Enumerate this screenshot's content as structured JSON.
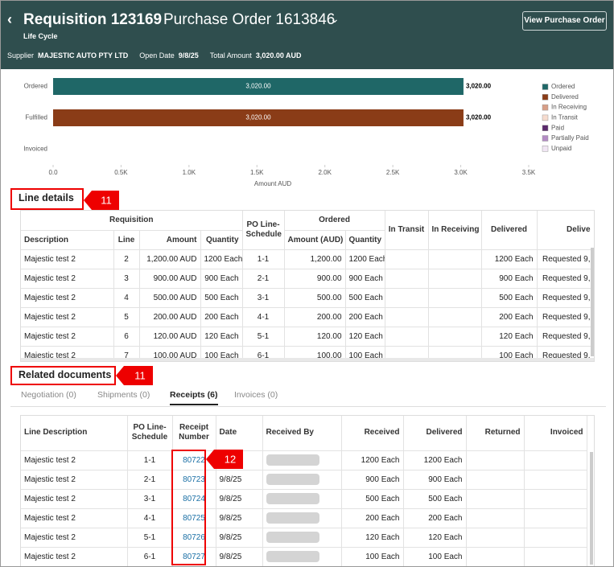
{
  "header": {
    "title": "Requisition 123169",
    "subtitle": "Purchase Order 1613846",
    "section": "Life Cycle",
    "button": "View Purchase Order",
    "fields": [
      {
        "label": "Supplier",
        "value": "MAJESTIC AUTO PTY LTD"
      },
      {
        "label": "Open Date",
        "value": "9/8/25"
      },
      {
        "label": "Total Amount",
        "value": "3,020.00 AUD"
      }
    ]
  },
  "chart_data": {
    "type": "bar",
    "orientation": "horizontal",
    "xlabel": "Amount AUD",
    "categories": [
      "Ordered",
      "Fulfilled",
      "Invoiced"
    ],
    "series": [
      {
        "name": "Ordered",
        "color": "#1f6767",
        "values": [
          3020,
          null,
          null
        ],
        "value_labels": [
          "3,020.00",
          null,
          null
        ]
      },
      {
        "name": "Delivered",
        "color": "#8a3c17",
        "values": [
          null,
          3020,
          null
        ],
        "value_labels": [
          null,
          "3,020.00",
          null
        ]
      },
      {
        "name": "In Receiving",
        "color": "#d79e86",
        "values": [
          null,
          null,
          null
        ]
      },
      {
        "name": "In Transit",
        "color": "#f6dccf",
        "values": [
          null,
          null,
          null
        ]
      },
      {
        "name": "Paid",
        "color": "#5a2a6c",
        "values": [
          null,
          null,
          null
        ]
      },
      {
        "name": "Partially Paid",
        "color": "#b38bc4",
        "values": [
          null,
          null,
          null
        ]
      },
      {
        "name": "Unpaid",
        "color": "#f1e6f4",
        "values": [
          null,
          null,
          null
        ]
      }
    ],
    "xlim": [
      0,
      3500
    ],
    "xticks": [
      {
        "value": 0,
        "label": "0.0"
      },
      {
        "value": 500,
        "label": "0.5K"
      },
      {
        "value": 1000,
        "label": "1.0K"
      },
      {
        "value": 1500,
        "label": "1.5K"
      },
      {
        "value": 2000,
        "label": "2.0K"
      },
      {
        "value": 2500,
        "label": "2.5K"
      },
      {
        "value": 3000,
        "label": "3.0K"
      },
      {
        "value": 3500,
        "label": "3.5K"
      }
    ],
    "legend": "right"
  },
  "line_details": {
    "title": "Line details",
    "badge": "11",
    "headers": {
      "requisition": "Requisition",
      "schedule": "PO Line-Schedule",
      "ordered": "Ordered",
      "in_transit": "In Transit",
      "in_receiving": "In Receiving",
      "delivered": "Delivered",
      "delivery": "Delive",
      "description": "Description",
      "line": "Line",
      "amount": "Amount",
      "quantity": "Quantity",
      "ordered_amount": "Amount (AUD)",
      "ordered_quantity": "Quantity"
    },
    "rows": [
      [
        "Majestic test 2",
        "2",
        "1,200.00 AUD",
        "1200 Each",
        "1-1",
        "1,200.00",
        "1200 Each",
        "1200 Each",
        "Requested 9,"
      ],
      [
        "Majestic test 2",
        "3",
        "900.00 AUD",
        "900 Each",
        "2-1",
        "900.00",
        "900 Each",
        "900 Each",
        "Requested 9,"
      ],
      [
        "Majestic test 2",
        "4",
        "500.00 AUD",
        "500 Each",
        "3-1",
        "500.00",
        "500 Each",
        "500 Each",
        "Requested 9,"
      ],
      [
        "Majestic test 2",
        "5",
        "200.00 AUD",
        "200 Each",
        "4-1",
        "200.00",
        "200 Each",
        "200 Each",
        "Requested 9,"
      ],
      [
        "Majestic test 2",
        "6",
        "120.00 AUD",
        "120 Each",
        "5-1",
        "120.00",
        "120 Each",
        "120 Each",
        "Requested 9,"
      ],
      [
        "Majestic test 2",
        "7",
        "100.00 AUD",
        "100 Each",
        "6-1",
        "100.00",
        "100 Each",
        "100 Each",
        "Requested 9,"
      ]
    ]
  },
  "related_documents": {
    "title": "Related documents",
    "badge": "11",
    "column_badge": "12",
    "tabs": [
      "Negotiation (0)",
      "Shipments (0)",
      "Receipts (6)",
      "Invoices (0)"
    ],
    "active_tab": 2,
    "headers": [
      "Line Description",
      "PO Line-Schedule",
      "Receipt Number",
      "Date",
      "Received By",
      "Received",
      "Delivered",
      "Returned",
      "Invoiced"
    ],
    "rows": [
      [
        "Majestic test 2",
        "1-1",
        "80722",
        "9/8/25",
        "1200 Each",
        "1200 Each"
      ],
      [
        "Majestic test 2",
        "2-1",
        "80723",
        "9/8/25",
        "900 Each",
        "900 Each"
      ],
      [
        "Majestic test 2",
        "3-1",
        "80724",
        "9/8/25",
        "500 Each",
        "500 Each"
      ],
      [
        "Majestic test 2",
        "4-1",
        "80725",
        "9/8/25",
        "200 Each",
        "200 Each"
      ],
      [
        "Majestic test 2",
        "5-1",
        "80726",
        "9/8/25",
        "120 Each",
        "120 Each"
      ],
      [
        "Majestic test 2",
        "6-1",
        "80727",
        "9/8/25",
        "100 Each",
        "100 Each"
      ]
    ]
  }
}
